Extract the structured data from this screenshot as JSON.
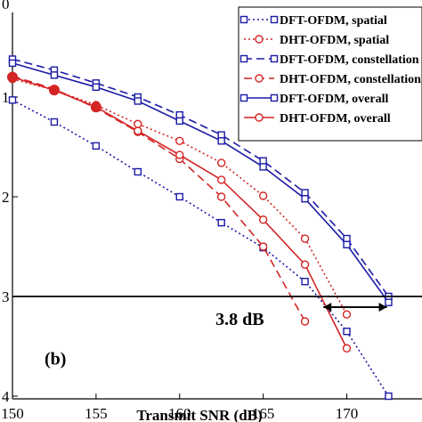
{
  "chart_data": {
    "type": "line",
    "panel_label": "(b)",
    "xlabel": "Transmit SNR (dB)",
    "ylabel": "",
    "xlim": [
      150,
      174.5
    ],
    "ylim": [
      0,
      4
    ],
    "y_scale": "log-exponent (tick labels show -log10 BER: 0..4)",
    "x_ticks": [
      150,
      155,
      160,
      165,
      170
    ],
    "y_ticks": [
      "0",
      "1",
      "2",
      "3",
      "4"
    ],
    "grid": false,
    "legend_position": "top-right",
    "colors": {
      "dft": "#1a1aa6",
      "dht": "#d42424"
    },
    "series": [
      {
        "name": "DFT-OFDM, spatial",
        "color": "#1a1aa6",
        "style": "dotted",
        "marker": "square",
        "x": [
          150,
          152.5,
          155,
          157.5,
          160,
          162.5,
          165,
          167.5,
          170,
          172.5
        ],
        "y": [
          1.03,
          1.25,
          1.49,
          1.75,
          2.0,
          2.26,
          2.51,
          2.85,
          3.35,
          4.0
        ]
      },
      {
        "name": "DHT-OFDM, spatial",
        "color": "#d42424",
        "style": "dotted",
        "marker": "circle",
        "x": [
          150,
          152.5,
          155,
          157.5,
          160,
          162.5,
          165,
          167.5,
          170
        ],
        "y": [
          0.82,
          0.93,
          1.08,
          1.27,
          1.44,
          1.66,
          1.99,
          2.42,
          3.18
        ]
      },
      {
        "name": "DFT-OFDM, constellation",
        "color": "#1a1aa6",
        "style": "dashed",
        "marker": "square",
        "x": [
          150,
          152.5,
          155,
          157.5,
          160,
          162.5,
          165,
          167.5,
          170,
          172.5
        ],
        "y": [
          0.62,
          0.73,
          0.86,
          1.0,
          1.18,
          1.38,
          1.64,
          1.96,
          2.42,
          3.0
        ]
      },
      {
        "name": "DHT-OFDM, constellation",
        "color": "#d42424",
        "style": "dashed",
        "marker": "circle",
        "x": [
          150,
          152.5,
          155,
          157.5,
          160,
          162.5,
          165,
          167.5
        ],
        "y": [
          0.79,
          0.92,
          1.11,
          1.35,
          1.62,
          2.0,
          2.5,
          3.25
        ]
      },
      {
        "name": "DFT-OFDM, overall",
        "color": "#1a1aa6",
        "style": "solid",
        "marker": "square",
        "x": [
          150,
          152.5,
          155,
          157.5,
          160,
          162.5,
          165,
          167.5,
          170,
          172.5
        ],
        "y": [
          0.66,
          0.78,
          0.9,
          1.04,
          1.24,
          1.44,
          1.7,
          2.02,
          2.48,
          3.06
        ]
      },
      {
        "name": "DHT-OFDM, overall",
        "color": "#d42424",
        "style": "solid",
        "marker": "circle",
        "x": [
          150,
          152.5,
          155,
          157.5,
          160,
          162.5,
          165,
          167.5,
          170
        ],
        "y": [
          0.8,
          0.93,
          1.1,
          1.34,
          1.58,
          1.83,
          2.23,
          2.68,
          3.52
        ]
      }
    ],
    "annotations": {
      "reference_level": 3,
      "gap_label": "3.8 dB",
      "gap_from": 168.6,
      "gap_to": 172.4
    }
  }
}
